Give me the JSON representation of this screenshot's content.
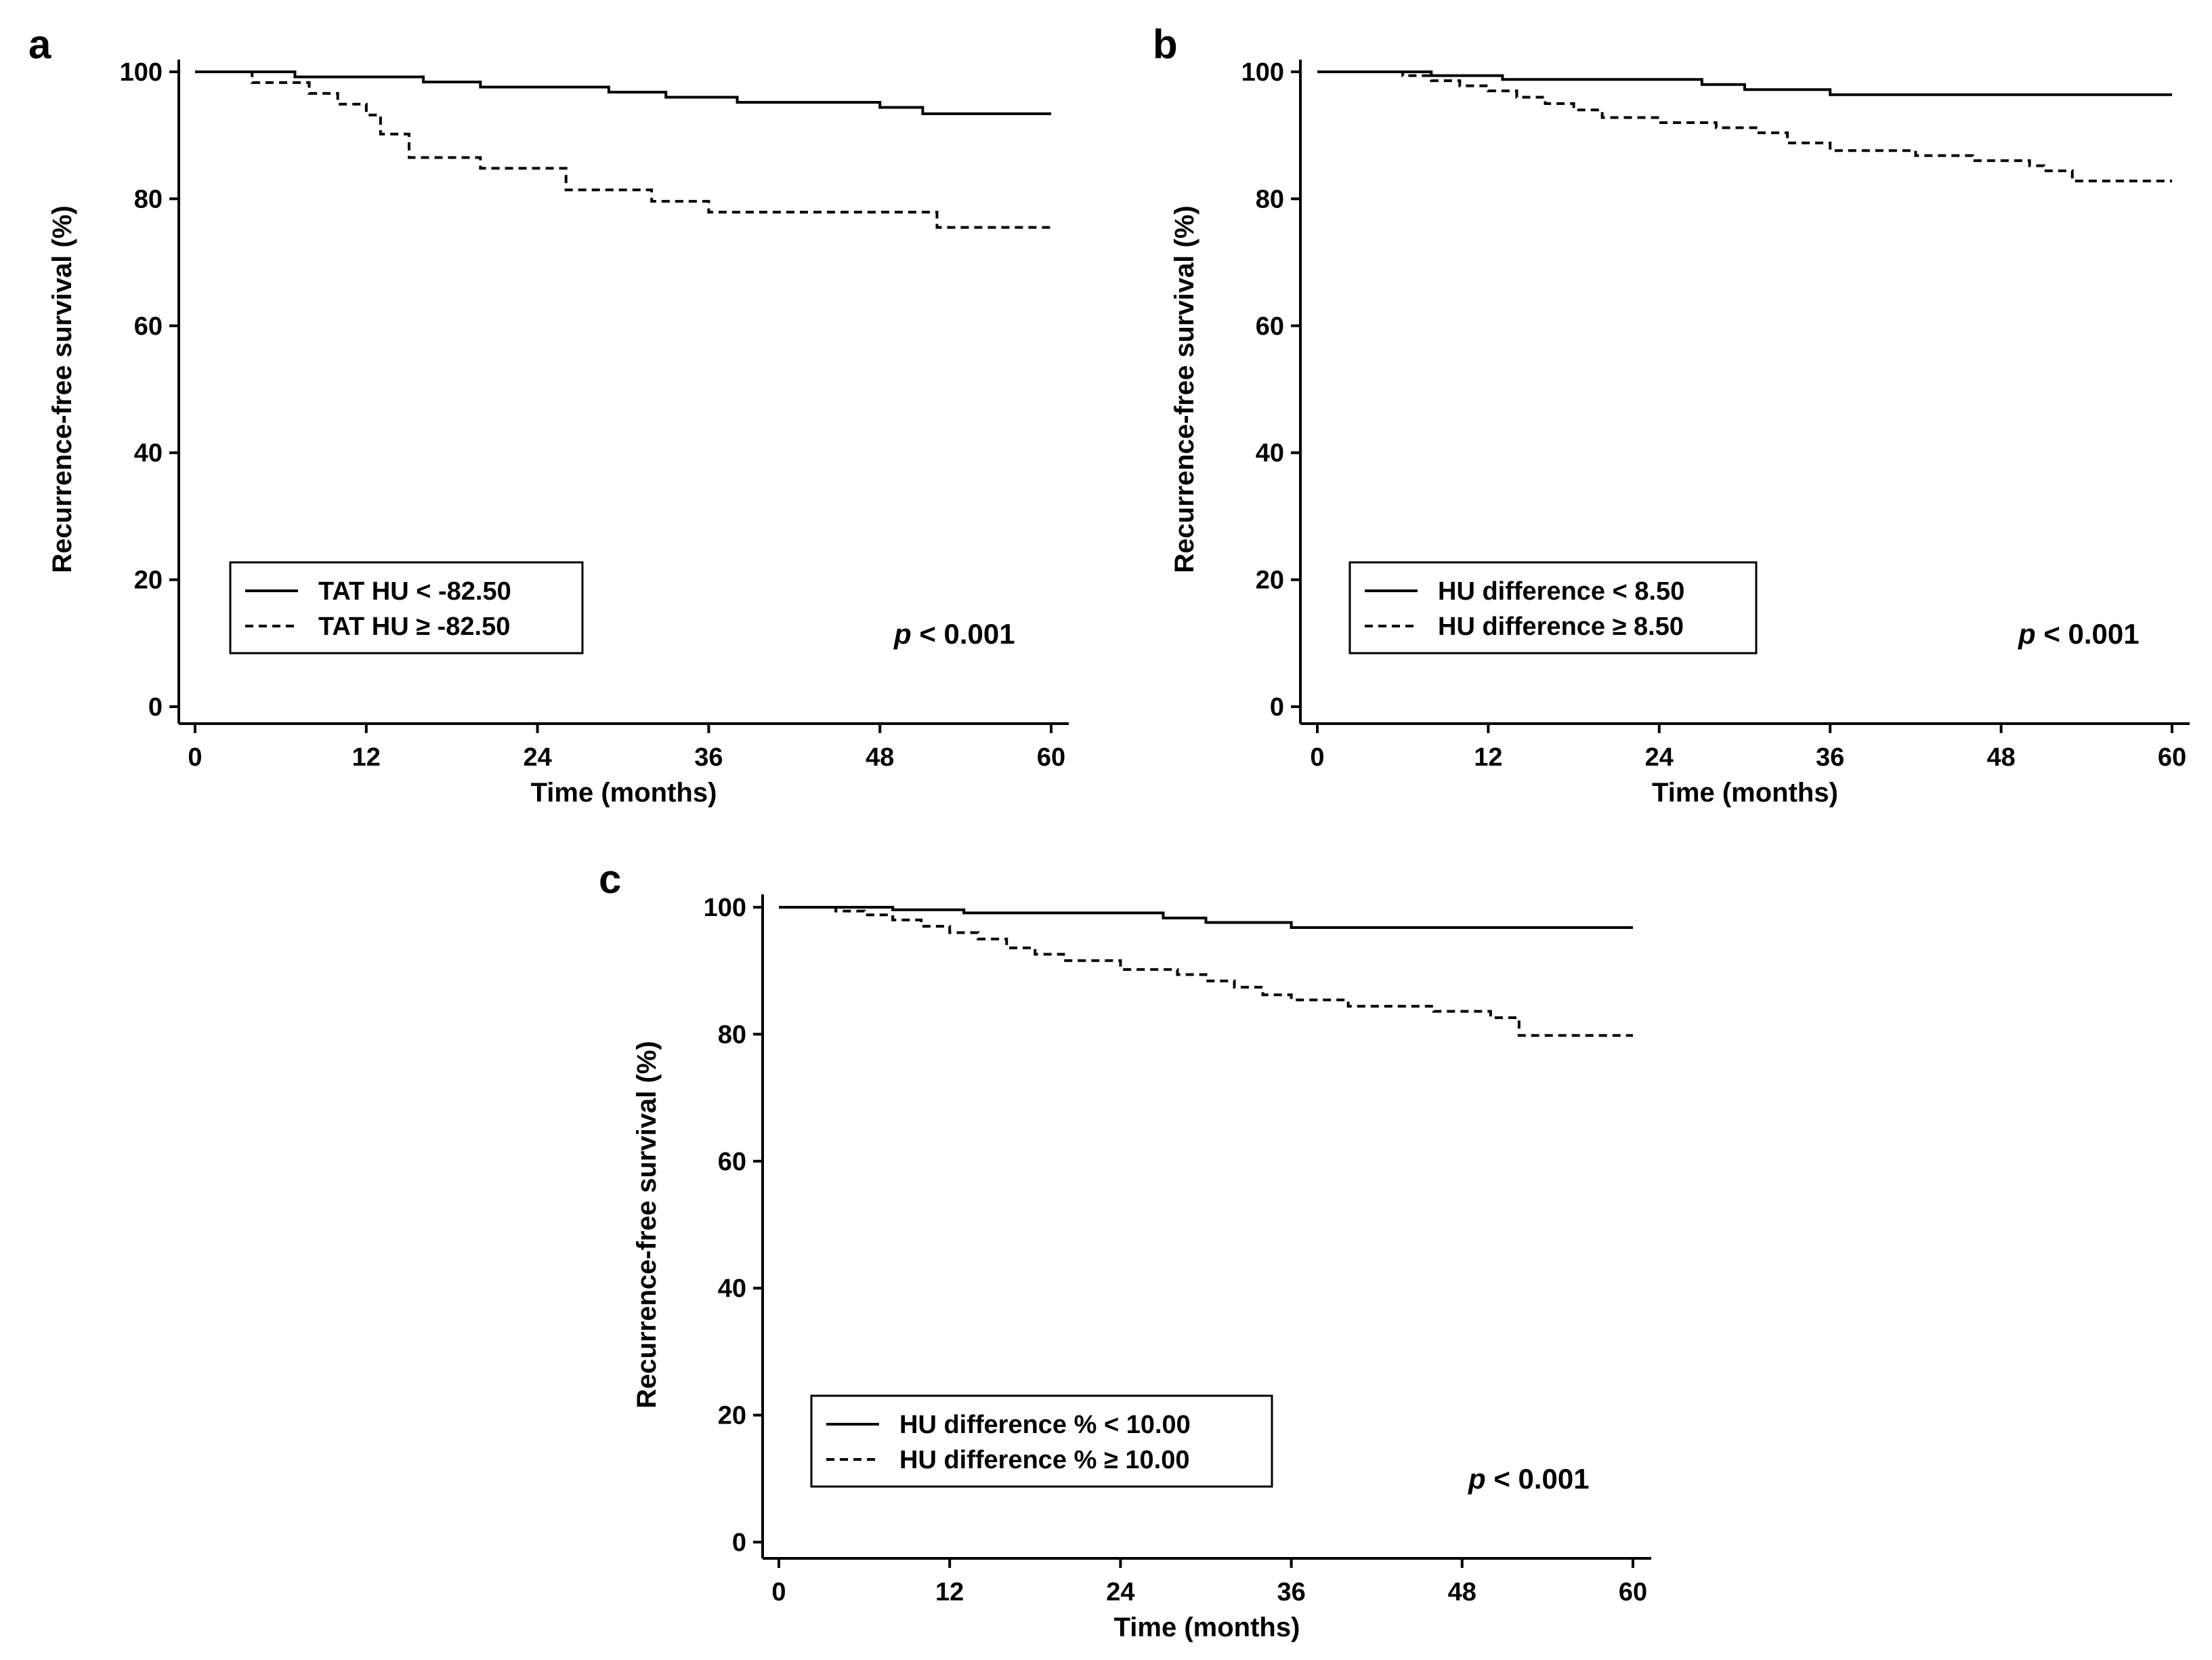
{
  "chart_data": [
    {
      "panel": "a",
      "type": "line",
      "ylabel": "Recurrence-free survival (%)",
      "xlabel": "Time (months)",
      "xlim": [
        0,
        60
      ],
      "ylim": [
        0,
        100
      ],
      "xticks": [
        0,
        12,
        24,
        36,
        48,
        60
      ],
      "yticks": [
        0,
        20,
        40,
        60,
        80,
        100
      ],
      "legend_position": "lower-left",
      "p_value": {
        "symbol": "p",
        "text": " < 0.001"
      },
      "series": [
        {
          "name": "TAT HU < -82.50",
          "style": "solid",
          "x": [
            0,
            7,
            16,
            20,
            29,
            33,
            38,
            48,
            51,
            60
          ],
          "y": [
            100,
            99.2,
            98.4,
            97.6,
            96.8,
            96,
            95.2,
            94.4,
            93.4,
            93.4
          ]
        },
        {
          "name": "TAT HU ≥ -82.50",
          "style": "dashed",
          "x": [
            0,
            4,
            8,
            10,
            12,
            13,
            15,
            20,
            26,
            32,
            36,
            52,
            60
          ],
          "y": [
            100,
            98.3,
            96.6,
            94.9,
            93.2,
            90.2,
            86.5,
            84.8,
            81.4,
            79.6,
            77.9,
            75.5,
            75.5
          ]
        }
      ]
    },
    {
      "panel": "b",
      "type": "line",
      "ylabel": "Recurrence-free survival (%)",
      "xlabel": "Time (months)",
      "xlim": [
        0,
        60
      ],
      "ylim": [
        0,
        100
      ],
      "xticks": [
        0,
        12,
        24,
        36,
        48,
        60
      ],
      "yticks": [
        0,
        20,
        40,
        60,
        80,
        100
      ],
      "legend_position": "lower-left",
      "p_value": {
        "symbol": "p",
        "text": " < 0.001"
      },
      "series": [
        {
          "name": "HU difference < 8.50",
          "style": "solid",
          "x": [
            0,
            8,
            13,
            27,
            30,
            36,
            60
          ],
          "y": [
            100,
            99.4,
            98.8,
            98,
            97.2,
            96.4,
            96.4
          ]
        },
        {
          "name": "HU difference ≥ 8.50",
          "style": "dashed",
          "x": [
            0,
            6,
            8,
            10,
            12,
            14,
            16,
            18,
            20,
            24,
            28,
            31,
            33,
            36,
            42,
            46,
            50,
            51,
            53,
            60
          ],
          "y": [
            100,
            99.4,
            98.6,
            97.8,
            97,
            96,
            95,
            94,
            92.8,
            92,
            91.2,
            90.4,
            88.8,
            87.6,
            86.8,
            86,
            85.2,
            84.4,
            82.8,
            82.8
          ]
        }
      ]
    },
    {
      "panel": "c",
      "type": "line",
      "ylabel": "Recurrence-free survival (%)",
      "xlabel": "Time (months)",
      "xlim": [
        0,
        60
      ],
      "ylim": [
        0,
        100
      ],
      "xticks": [
        0,
        12,
        24,
        36,
        48,
        60
      ],
      "yticks": [
        0,
        20,
        40,
        60,
        80,
        100
      ],
      "legend_position": "lower-left",
      "p_value": {
        "symbol": "p",
        "text": " < 0.001"
      },
      "series": [
        {
          "name": "HU difference % < 10.00",
          "style": "solid",
          "x": [
            0,
            8,
            13,
            27,
            30,
            36,
            60
          ],
          "y": [
            100,
            99.6,
            99.1,
            98.3,
            97.6,
            96.8,
            96.8
          ]
        },
        {
          "name": "HU difference % ≥ 10.00",
          "style": "dashed",
          "x": [
            0,
            4,
            6,
            8,
            10,
            12,
            14,
            16,
            18,
            20,
            24,
            28,
            30,
            32,
            34,
            36,
            40,
            46,
            50,
            52,
            60
          ],
          "y": [
            100,
            99.4,
            98.8,
            98,
            97,
            96,
            95,
            93.6,
            92.6,
            91.6,
            90.2,
            89.4,
            88.4,
            87.4,
            86.2,
            85.4,
            84.4,
            83.6,
            82.6,
            79.8,
            79.8
          ]
        }
      ]
    }
  ]
}
